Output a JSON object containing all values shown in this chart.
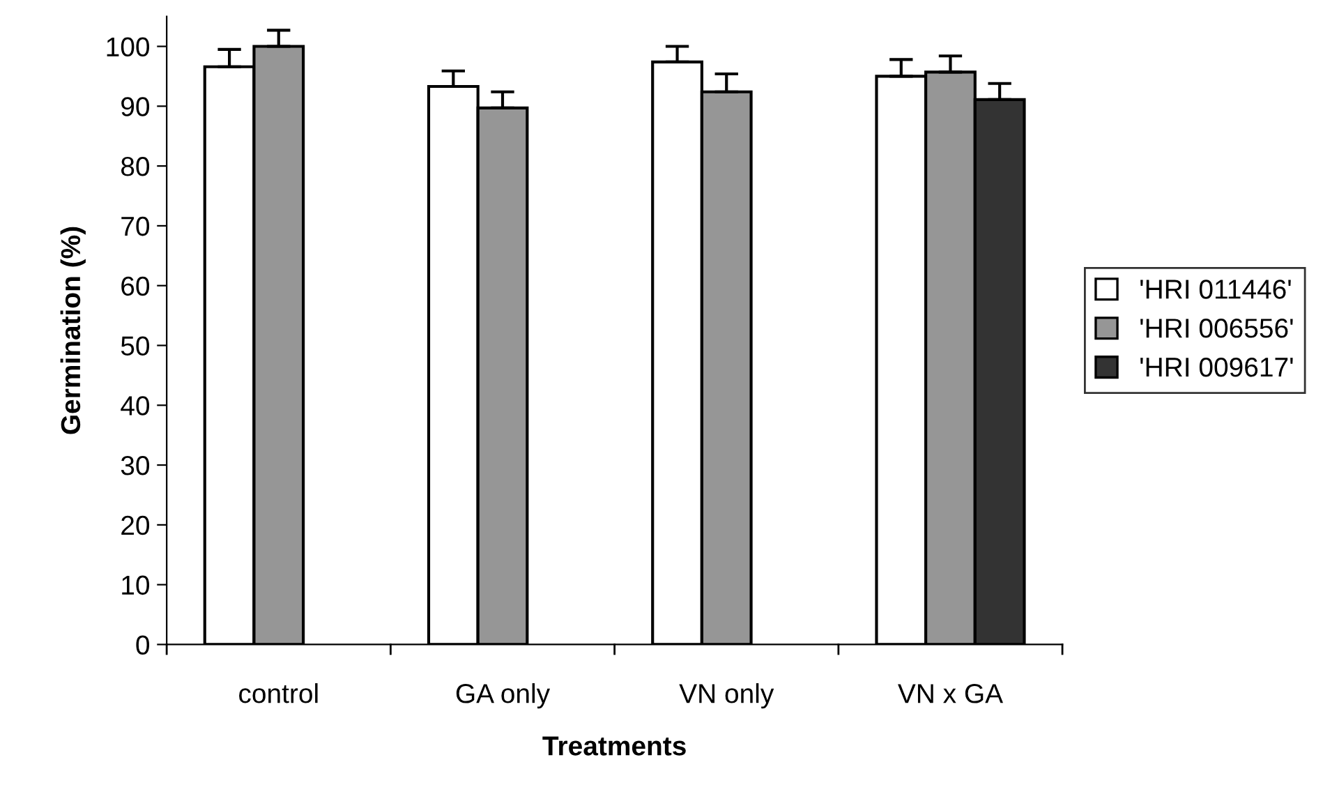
{
  "chart_data": {
    "type": "bar",
    "xlabel": "Treatments",
    "ylabel": "Germination (%)",
    "categories": [
      "control",
      "GA only",
      "VN only",
      "VN x GA"
    ],
    "series": [
      {
        "name": "'HRI 011446'",
        "color": "#ffffff",
        "values": [
          96.6,
          93.3,
          97.4,
          95.0
        ],
        "errors": [
          [
            96.6,
            99.5
          ],
          [
            93.3,
            95.9
          ],
          [
            97.4,
            100.0
          ],
          [
            95.0,
            97.8
          ]
        ]
      },
      {
        "name": "'HRI 006556'",
        "color": "#969696",
        "values": [
          100.0,
          89.7,
          92.4,
          95.7
        ],
        "errors": [
          [
            100.0,
            102.7
          ],
          [
            89.7,
            92.4
          ],
          [
            92.4,
            95.4
          ],
          [
            95.7,
            98.4
          ]
        ]
      },
      {
        "name": "'HRI 009617'",
        "color": "#333333",
        "values": [
          null,
          null,
          null,
          91.1
        ],
        "errors": [
          null,
          null,
          null,
          [
            91.1,
            93.8
          ]
        ]
      }
    ],
    "ylim": [
      0,
      105
    ],
    "yticks": [
      0,
      10,
      20,
      30,
      40,
      50,
      60,
      70,
      80,
      90,
      100
    ],
    "grid": false,
    "legend": "right"
  }
}
